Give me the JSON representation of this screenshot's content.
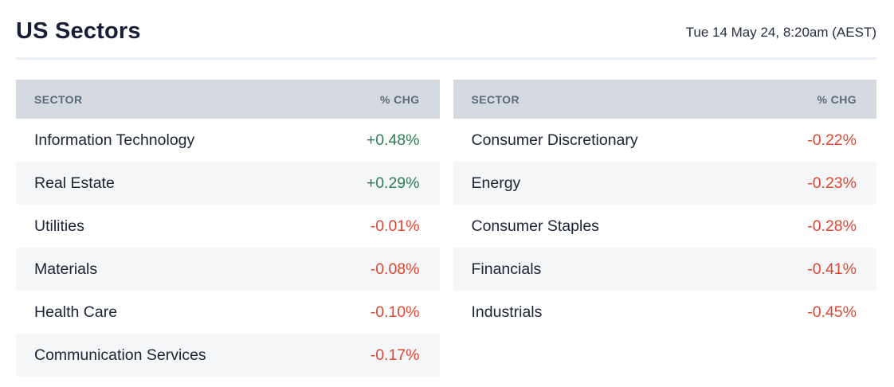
{
  "header": {
    "title": "US Sectors",
    "timestamp": "Tue 14 May 24, 8:20am (AEST)"
  },
  "columns": {
    "sector": "SECTOR",
    "change": "% CHG"
  },
  "left_table": {
    "rows": [
      {
        "sector": "Information Technology",
        "change": "+0.48%"
      },
      {
        "sector": "Real Estate",
        "change": "+0.29%"
      },
      {
        "sector": "Utilities",
        "change": "-0.01%"
      },
      {
        "sector": "Materials",
        "change": "-0.08%"
      },
      {
        "sector": "Health Care",
        "change": "-0.10%"
      },
      {
        "sector": "Communication Services",
        "change": "-0.17%"
      }
    ]
  },
  "right_table": {
    "rows": [
      {
        "sector": "Consumer Discretionary",
        "change": "-0.22%"
      },
      {
        "sector": "Energy",
        "change": "-0.23%"
      },
      {
        "sector": "Consumer Staples",
        "change": "-0.28%"
      },
      {
        "sector": "Financials",
        "change": "-0.41%"
      },
      {
        "sector": "Industrials",
        "change": "-0.45%"
      }
    ]
  },
  "colors": {
    "positive": "#2e7d59",
    "negative": "#dc4732",
    "header_bg": "#d4dae0",
    "header_text": "#5a6a7b",
    "row_alt_bg": "#f5f6f7",
    "title_text": "#161f36",
    "divider": "#e9eef5"
  },
  "chart_data": {
    "type": "table",
    "title": "US Sectors",
    "subtitle": "Tue 14 May 24, 8:20am (AEST)",
    "columns": [
      "SECTOR",
      "% CHG"
    ],
    "tables": [
      {
        "position": "left",
        "rows": [
          [
            "Information Technology",
            0.48
          ],
          [
            "Real Estate",
            0.29
          ],
          [
            "Utilities",
            -0.01
          ],
          [
            "Materials",
            -0.08
          ],
          [
            "Health Care",
            -0.1
          ],
          [
            "Communication Services",
            -0.17
          ]
        ]
      },
      {
        "position": "right",
        "rows": [
          [
            "Consumer Discretionary",
            -0.22
          ],
          [
            "Energy",
            -0.23
          ],
          [
            "Consumer Staples",
            -0.28
          ],
          [
            "Financials",
            -0.41
          ],
          [
            "Industrials",
            -0.45
          ]
        ]
      }
    ],
    "value_unit": "percent_change",
    "positive_color": "#2e7d59",
    "negative_color": "#dc4732"
  }
}
